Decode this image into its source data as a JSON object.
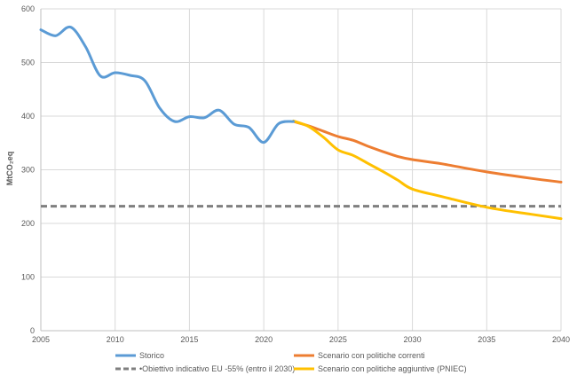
{
  "chart_data": {
    "type": "line",
    "title": "",
    "xlabel": "",
    "ylabel": "MtCO₂eq",
    "xlim": [
      2005,
      2040
    ],
    "ylim": [
      0,
      600
    ],
    "x_ticks": [
      "2005",
      "2010",
      "2015",
      "2020",
      "2025",
      "2030",
      "2035",
      "2040"
    ],
    "y_ticks": [
      "0",
      "100",
      "200",
      "300",
      "400",
      "500",
      "600"
    ],
    "grid": true,
    "legend_position": "bottom",
    "series": [
      {
        "name": "Storico",
        "color": "#5B9BD5",
        "style": "solid",
        "points": [
          [
            2005,
            561
          ],
          [
            2006,
            550
          ],
          [
            2007,
            566
          ],
          [
            2008,
            530
          ],
          [
            2009,
            475
          ],
          [
            2010,
            481
          ],
          [
            2011,
            476
          ],
          [
            2012,
            466
          ],
          [
            2013,
            415
          ],
          [
            2014,
            390
          ],
          [
            2015,
            399
          ],
          [
            2016,
            397
          ],
          [
            2017,
            411
          ],
          [
            2018,
            385
          ],
          [
            2019,
            379
          ],
          [
            2020,
            351
          ],
          [
            2021,
            386
          ],
          [
            2022,
            390
          ]
        ]
      },
      {
        "name": "Scenario con politiche correnti",
        "color": "#ED7D31",
        "style": "solid",
        "points": [
          [
            2022,
            390
          ],
          [
            2023,
            382
          ],
          [
            2024,
            372
          ],
          [
            2025,
            362
          ],
          [
            2026,
            355
          ],
          [
            2027,
            344
          ],
          [
            2028,
            334
          ],
          [
            2029,
            325
          ],
          [
            2030,
            319
          ],
          [
            2032,
            311
          ],
          [
            2035,
            296
          ],
          [
            2038,
            284
          ],
          [
            2040,
            277
          ]
        ]
      },
      {
        "name": "•Obiettivo indicativo EU -55% (entro il 2030)",
        "color": "#7F7F7F",
        "style": "dashed",
        "points": [
          [
            2005,
            232
          ],
          [
            2040,
            232
          ]
        ]
      },
      {
        "name": "Scenario con politiche aggiuntive (PNIEC)",
        "color": "#FFC000",
        "style": "solid",
        "points": [
          [
            2022,
            391
          ],
          [
            2023,
            381
          ],
          [
            2024,
            361
          ],
          [
            2025,
            337
          ],
          [
            2026,
            327
          ],
          [
            2027,
            312
          ],
          [
            2028,
            297
          ],
          [
            2029,
            281
          ],
          [
            2030,
            264
          ],
          [
            2032,
            250
          ],
          [
            2035,
            230
          ],
          [
            2038,
            217
          ],
          [
            2040,
            209
          ]
        ]
      }
    ]
  }
}
